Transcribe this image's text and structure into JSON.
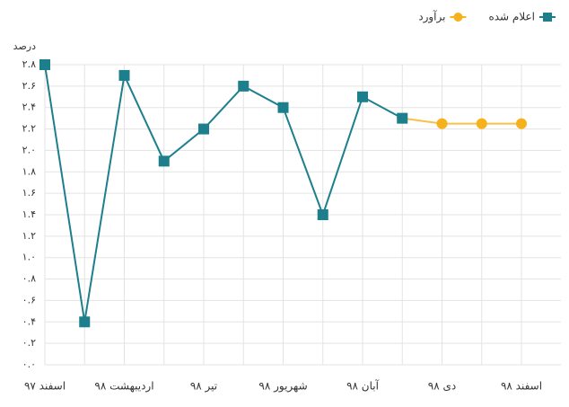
{
  "chart_data": {
    "type": "line",
    "y_label": "درصد",
    "categories": [
      "اسفند ۹۷",
      null,
      "اردیبهشت ۹۸",
      null,
      "تیر ۹۸",
      null,
      "شهریور ۹۸",
      null,
      "آبان ۹۸",
      null,
      "دی ۹۸",
      null,
      "اسفند ۹۸"
    ],
    "series": [
      {
        "name": "اعلام شده",
        "color": "#1d7f8c",
        "marker": "square",
        "values": [
          2.8,
          0.4,
          2.7,
          1.9,
          2.2,
          2.6,
          2.4,
          1.4,
          2.5,
          2.3,
          null,
          null,
          null
        ]
      },
      {
        "name": "برآورد",
        "color": "#f6b21c",
        "marker": "circle",
        "values": [
          null,
          null,
          null,
          null,
          null,
          null,
          null,
          null,
          null,
          2.3,
          2.25,
          2.25,
          2.25
        ]
      }
    ],
    "ylim": [
      0,
      2.8
    ],
    "yticks": [
      {
        "value": 0,
        "label": "۰.۰"
      },
      {
        "value": 0.2,
        "label": "۰.۲"
      },
      {
        "value": 0.4,
        "label": "۰.۴"
      },
      {
        "value": 0.6,
        "label": "۰.۶"
      },
      {
        "value": 0.8,
        "label": "۰.۸"
      },
      {
        "value": 1.0,
        "label": "۱.۰"
      },
      {
        "value": 1.2,
        "label": "۱.۲"
      },
      {
        "value": 1.4,
        "label": "۱.۴"
      },
      {
        "value": 1.6,
        "label": "۱.۶"
      },
      {
        "value": 1.8,
        "label": "۱.۸"
      },
      {
        "value": 2.0,
        "label": "۲.۰"
      },
      {
        "value": 2.2,
        "label": "۲.۲"
      },
      {
        "value": 2.4,
        "label": "۲.۴"
      },
      {
        "value": 2.6,
        "label": "۲.۶"
      },
      {
        "value": 2.8,
        "label": "۲.۸"
      }
    ],
    "grid": true,
    "legend": "top-right"
  }
}
